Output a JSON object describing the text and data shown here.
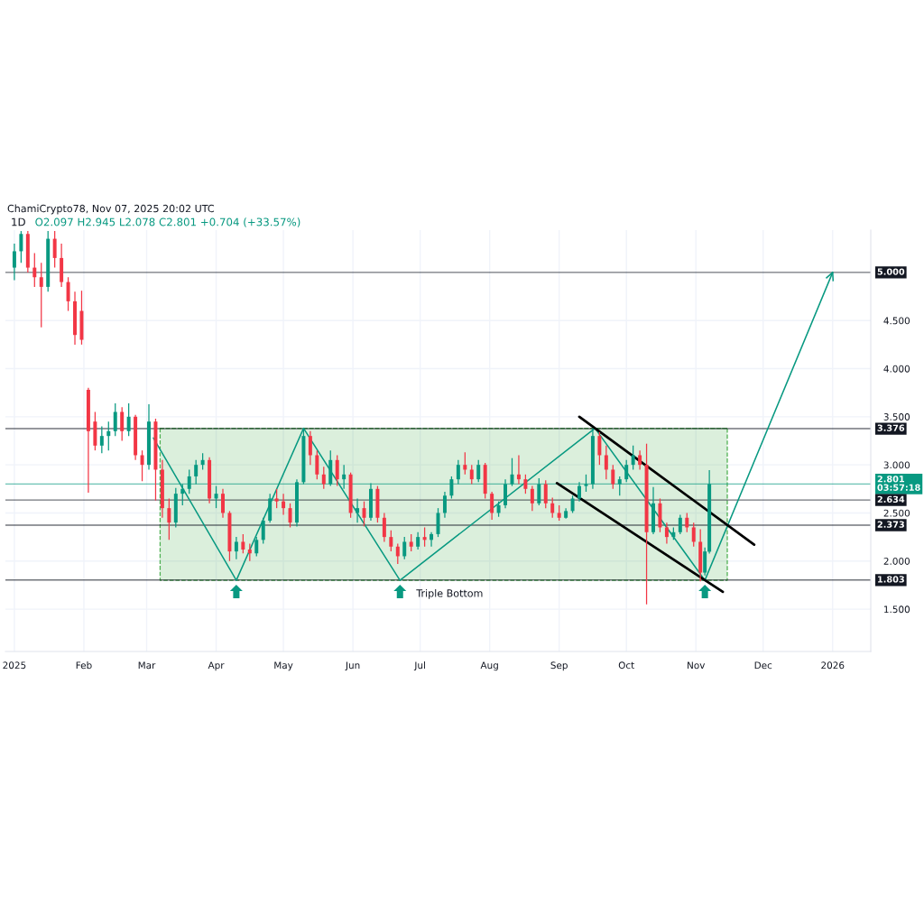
{
  "chart_data": {
    "type": "candlestick",
    "title": "1D",
    "subtitle": "O2.097 H2.945 L2.078 C2.801 +0.704 (+33.57%)",
    "annotations": [
      "ChamiCrypto78, Nov 07, 2025 20:02 UTC",
      {
        "text": "Triple Bottom",
        "x": "2025-06-22",
        "y": 1.8
      }
    ],
    "xlim": [
      "2024-12-28",
      "2026-01-18"
    ],
    "xticks": [
      {
        "value": "2025-01-01",
        "label": "2025"
      },
      {
        "value": "2025-02-01",
        "label": "Feb"
      },
      {
        "value": "2025-03-01",
        "label": "Mar"
      },
      {
        "value": "2025-04-01",
        "label": "Apr"
      },
      {
        "value": "2025-05-01",
        "label": "May"
      },
      {
        "value": "2025-06-01",
        "label": "Jun"
      },
      {
        "value": "2025-07-01",
        "label": "Jul"
      },
      {
        "value": "2025-08-01",
        "label": "Aug"
      },
      {
        "value": "2025-09-01",
        "label": "Sep"
      },
      {
        "value": "2025-10-01",
        "label": "Oct"
      },
      {
        "value": "2025-11-01",
        "label": "Nov"
      },
      {
        "value": "2025-12-01",
        "label": "Dec"
      },
      {
        "value": "2026-01-01",
        "label": "2026"
      }
    ],
    "ylim": [
      1.06,
      5.44
    ],
    "yticks": [
      {
        "value": 1.5,
        "label": "1.500"
      },
      {
        "value": 2.0,
        "label": "2.000"
      },
      {
        "value": 2.5,
        "label": "2.500"
      },
      {
        "value": 3.0,
        "label": "3.000"
      },
      {
        "value": 3.5,
        "label": "3.500"
      },
      {
        "value": 4.0,
        "label": "4.000"
      },
      {
        "value": 4.5,
        "label": "4.500"
      }
    ],
    "grid": true,
    "ref_lines": [
      {
        "axis": "y",
        "value": 5.0,
        "label": "5.000",
        "color": "#131722"
      },
      {
        "axis": "y",
        "value": 3.376,
        "label": "3.376",
        "color": "#131722"
      },
      {
        "axis": "y",
        "value": 2.801,
        "label": "2.801\n03:57:18",
        "color": "#089981"
      },
      {
        "axis": "y",
        "value": 2.634,
        "label": "2.634",
        "color": "#131722"
      },
      {
        "axis": "y",
        "value": 2.373,
        "label": "2.373",
        "color": "#131722"
      },
      {
        "axis": "y",
        "value": 1.803,
        "label": "1.803",
        "color": "#131722"
      }
    ],
    "series": [
      {
        "type": "line",
        "x": [
          "2025-03-07",
          "2025-11-15"
        ],
        "values": [
          3.38,
          3.38
        ],
        "lower": [
          1.8,
          1.8
        ],
        "upper": [
          3.38,
          3.38
        ],
        "color": "#4caf50",
        "line_style": "dashed"
      },
      {
        "x": [
          "2025-01-01",
          "2025-01-04",
          "2025-01-07",
          "2025-01-10",
          "2025-01-13",
          "2025-01-16",
          "2025-01-19",
          "2025-01-22",
          "2025-01-25",
          "2025-01-28",
          "2025-01-31",
          "2025-02-03",
          "2025-02-06",
          "2025-02-09",
          "2025-02-12",
          "2025-02-15",
          "2025-02-18",
          "2025-02-21",
          "2025-02-24",
          "2025-02-27",
          "2025-03-02",
          "2025-03-05",
          "2025-03-08",
          "2025-03-11",
          "2025-03-14",
          "2025-03-17",
          "2025-03-20",
          "2025-03-23",
          "2025-03-26",
          "2025-03-29",
          "2025-04-01",
          "2025-04-04",
          "2025-04-07",
          "2025-04-10",
          "2025-04-13",
          "2025-04-16",
          "2025-04-19",
          "2025-04-22",
          "2025-04-25",
          "2025-04-28",
          "2025-05-01",
          "2025-05-04",
          "2025-05-07",
          "2025-05-10",
          "2025-05-13",
          "2025-05-16",
          "2025-05-19",
          "2025-05-22",
          "2025-05-25",
          "2025-05-28",
          "2025-05-31",
          "2025-06-03",
          "2025-06-06",
          "2025-06-09",
          "2025-06-12",
          "2025-06-15",
          "2025-06-18",
          "2025-06-21",
          "2025-06-24",
          "2025-06-27",
          "2025-06-30",
          "2025-07-03",
          "2025-07-06",
          "2025-07-09",
          "2025-07-12",
          "2025-07-15",
          "2025-07-18",
          "2025-07-21",
          "2025-07-24",
          "2025-07-27",
          "2025-07-30",
          "2025-08-02",
          "2025-08-05",
          "2025-08-08",
          "2025-08-11",
          "2025-08-14",
          "2025-08-17",
          "2025-08-20",
          "2025-08-23",
          "2025-08-26",
          "2025-08-29",
          "2025-09-01",
          "2025-09-04",
          "2025-09-07",
          "2025-09-10",
          "2025-09-13",
          "2025-09-16",
          "2025-09-19",
          "2025-09-22",
          "2025-09-25",
          "2025-09-28",
          "2025-10-01",
          "2025-10-04",
          "2025-10-07",
          "2025-10-10",
          "2025-10-13",
          "2025-10-16",
          "2025-10-19",
          "2025-10-22",
          "2025-10-25",
          "2025-10-28",
          "2025-10-31",
          "2025-11-03",
          "2025-11-05",
          "2025-11-07"
        ],
        "ohlc": [
          [
            5.05,
            5.3,
            4.92,
            5.22
          ],
          [
            5.22,
            5.43,
            5.1,
            5.4
          ],
          [
            5.4,
            5.43,
            5.0,
            5.05
          ],
          [
            5.05,
            5.2,
            4.85,
            4.95
          ],
          [
            4.95,
            5.1,
            4.43,
            4.85
          ],
          [
            4.85,
            5.43,
            4.8,
            5.35
          ],
          [
            5.35,
            5.43,
            5.05,
            5.15
          ],
          [
            5.15,
            5.3,
            4.85,
            4.9
          ],
          [
            4.9,
            4.95,
            4.6,
            4.7
          ],
          [
            4.7,
            4.8,
            4.25,
            4.35
          ],
          [
            4.6,
            4.81,
            4.25,
            4.3
          ],
          [
            3.78,
            3.8,
            2.71,
            3.35
          ],
          [
            3.45,
            3.55,
            3.15,
            3.2
          ],
          [
            3.2,
            3.4,
            3.12,
            3.3
          ],
          [
            3.3,
            3.45,
            3.15,
            3.35
          ],
          [
            3.35,
            3.64,
            3.3,
            3.55
          ],
          [
            3.55,
            3.6,
            3.25,
            3.35
          ],
          [
            3.35,
            3.64,
            3.3,
            3.5
          ],
          [
            3.5,
            3.52,
            3.05,
            3.1
          ],
          [
            3.1,
            3.15,
            2.83,
            3.0
          ],
          [
            3.0,
            3.63,
            2.95,
            3.45
          ],
          [
            3.45,
            3.48,
            2.63,
            2.95
          ],
          [
            2.95,
            3.05,
            2.45,
            2.55
          ],
          [
            2.55,
            2.65,
            2.22,
            2.4
          ],
          [
            2.4,
            2.76,
            2.35,
            2.7
          ],
          [
            2.7,
            2.8,
            2.58,
            2.75
          ],
          [
            2.75,
            2.95,
            2.7,
            2.88
          ],
          [
            2.88,
            3.05,
            2.8,
            3.0
          ],
          [
            3.0,
            3.12,
            2.95,
            3.05
          ],
          [
            3.05,
            3.08,
            2.6,
            2.65
          ],
          [
            2.65,
            2.78,
            2.55,
            2.7
          ],
          [
            2.7,
            2.75,
            2.45,
            2.5
          ],
          [
            2.5,
            2.52,
            2.0,
            2.1
          ],
          [
            2.1,
            2.25,
            2.02,
            2.2
          ],
          [
            2.2,
            2.28,
            2.08,
            2.12
          ],
          [
            2.12,
            2.18,
            2.0,
            2.08
          ],
          [
            2.08,
            2.25,
            2.05,
            2.22
          ],
          [
            2.22,
            2.45,
            2.18,
            2.42
          ],
          [
            2.42,
            2.7,
            2.4,
            2.65
          ],
          [
            2.65,
            2.75,
            2.55,
            2.62
          ],
          [
            2.62,
            2.7,
            2.48,
            2.55
          ],
          [
            2.55,
            2.6,
            2.35,
            2.4
          ],
          [
            2.4,
            2.85,
            2.36,
            2.82
          ],
          [
            2.82,
            3.38,
            2.8,
            3.3
          ],
          [
            3.3,
            3.35,
            3.0,
            3.1
          ],
          [
            3.1,
            3.15,
            2.85,
            2.9
          ],
          [
            2.9,
            2.98,
            2.75,
            2.8
          ],
          [
            2.8,
            3.15,
            2.78,
            3.05
          ],
          [
            3.05,
            3.1,
            2.78,
            2.85
          ],
          [
            2.85,
            3.0,
            2.75,
            2.9
          ],
          [
            2.9,
            2.92,
            2.45,
            2.5
          ],
          [
            2.5,
            2.65,
            2.4,
            2.55
          ],
          [
            2.55,
            2.62,
            2.36,
            2.45
          ],
          [
            2.45,
            2.81,
            2.42,
            2.75
          ],
          [
            2.75,
            2.78,
            2.4,
            2.45
          ],
          [
            2.45,
            2.5,
            2.2,
            2.25
          ],
          [
            2.25,
            2.32,
            2.1,
            2.15
          ],
          [
            2.15,
            2.18,
            1.97,
            2.05
          ],
          [
            2.05,
            2.25,
            2.02,
            2.2
          ],
          [
            2.2,
            2.28,
            2.1,
            2.15
          ],
          [
            2.15,
            2.3,
            2.12,
            2.25
          ],
          [
            2.25,
            2.35,
            2.15,
            2.22
          ],
          [
            2.22,
            2.3,
            2.15,
            2.28
          ],
          [
            2.28,
            2.55,
            2.25,
            2.5
          ],
          [
            2.5,
            2.72,
            2.45,
            2.68
          ],
          [
            2.68,
            2.88,
            2.65,
            2.85
          ],
          [
            2.85,
            3.05,
            2.8,
            3.0
          ],
          [
            3.0,
            3.13,
            2.9,
            2.95
          ],
          [
            2.95,
            3.0,
            2.8,
            2.85
          ],
          [
            2.85,
            3.05,
            2.82,
            3.0
          ],
          [
            3.0,
            3.02,
            2.65,
            2.7
          ],
          [
            2.7,
            2.72,
            2.43,
            2.5
          ],
          [
            2.5,
            2.62,
            2.46,
            2.58
          ],
          [
            2.58,
            2.85,
            2.55,
            2.8
          ],
          [
            2.8,
            3.07,
            2.78,
            2.9
          ],
          [
            2.9,
            3.1,
            2.8,
            2.85
          ],
          [
            2.85,
            2.9,
            2.7,
            2.75
          ],
          [
            2.75,
            2.78,
            2.52,
            2.6
          ],
          [
            2.6,
            2.86,
            2.58,
            2.8
          ],
          [
            2.8,
            2.84,
            2.55,
            2.6
          ],
          [
            2.6,
            2.66,
            2.45,
            2.5
          ],
          [
            2.5,
            2.58,
            2.42,
            2.45
          ],
          [
            2.45,
            2.55,
            2.44,
            2.52
          ],
          [
            2.52,
            2.68,
            2.5,
            2.65
          ],
          [
            2.65,
            2.82,
            2.62,
            2.78
          ],
          [
            2.78,
            2.9,
            2.72,
            2.8
          ],
          [
            2.8,
            3.38,
            2.75,
            3.3
          ],
          [
            3.3,
            3.34,
            3.0,
            3.1
          ],
          [
            3.1,
            3.2,
            2.85,
            2.95
          ],
          [
            2.95,
            3.0,
            2.75,
            2.8
          ],
          [
            2.8,
            2.88,
            2.68,
            2.85
          ],
          [
            2.85,
            3.05,
            2.82,
            3.0
          ],
          [
            3.0,
            3.2,
            2.95,
            3.1
          ],
          [
            3.1,
            3.15,
            2.95,
            3.0
          ],
          [
            3.0,
            3.22,
            1.55,
            2.3
          ],
          [
            2.3,
            2.77,
            2.28,
            2.6
          ],
          [
            2.6,
            2.65,
            2.3,
            2.35
          ],
          [
            2.35,
            2.4,
            2.18,
            2.25
          ],
          [
            2.25,
            2.35,
            2.22,
            2.3
          ],
          [
            2.3,
            2.48,
            2.28,
            2.45
          ],
          [
            2.45,
            2.5,
            2.3,
            2.35
          ],
          [
            2.35,
            2.4,
            2.15,
            2.2
          ],
          [
            2.2,
            2.33,
            1.79,
            1.88
          ],
          [
            1.88,
            2.14,
            1.85,
            2.1
          ],
          [
            2.097,
            2.945,
            2.078,
            2.801
          ]
        ],
        "colors": [
          "#089981",
          "#089981",
          "#f23645",
          "#f23645",
          "#f23645",
          "#089981",
          "#f23645",
          "#f23645",
          "#f23645",
          "#f23645",
          "#f23645",
          "#f23645",
          "#f23645",
          "#089981",
          "#089981",
          "#089981",
          "#f23645",
          "#089981",
          "#f23645",
          "#f23645",
          "#089981",
          "#f23645",
          "#f23645",
          "#f23645",
          "#089981",
          "#089981",
          "#089981",
          "#089981",
          "#089981",
          "#f23645",
          "#089981",
          "#f23645",
          "#f23645",
          "#089981",
          "#f23645",
          "#f23645",
          "#089981",
          "#089981",
          "#089981",
          "#f23645",
          "#f23645",
          "#f23645",
          "#089981",
          "#089981",
          "#f23645",
          "#f23645",
          "#f23645",
          "#089981",
          "#f23645",
          "#089981",
          "#f23645",
          "#089981",
          "#f23645",
          "#089981",
          "#f23645",
          "#f23645",
          "#f23645",
          "#f23645",
          "#089981",
          "#f23645",
          "#089981",
          "#f23645",
          "#089981",
          "#089981",
          "#089981",
          "#089981",
          "#089981",
          "#f23645",
          "#f23645",
          "#089981",
          "#f23645",
          "#f23645",
          "#089981",
          "#089981",
          "#089981",
          "#f23645",
          "#f23645",
          "#f23645",
          "#089981",
          "#f23645",
          "#f23645",
          "#f23645",
          "#089981",
          "#089981",
          "#089981",
          "#089981",
          "#089981",
          "#f23645",
          "#f23645",
          "#f23645",
          "#089981",
          "#089981",
          "#089981",
          "#f23645",
          "#f23645",
          "#089981",
          "#f23645",
          "#f23645",
          "#089981",
          "#089981",
          "#f23645",
          "#f23645",
          "#f23645",
          "#089981",
          "#089981"
        ]
      },
      {
        "type": "line",
        "x": [
          "2025-03-04",
          "2025-04-10",
          "2025-05-10",
          "2025-06-22",
          "2025-09-17",
          "2025-11-05",
          "2026-01-01"
        ],
        "values": [
          3.28,
          1.8,
          3.38,
          1.8,
          3.38,
          1.8,
          5.0
        ],
        "color": "#089981"
      },
      {
        "type": "line",
        "x": [
          "2025-09-10",
          "2025-11-27"
        ],
        "values": [
          3.5,
          2.17
        ],
        "color": "#000000"
      },
      {
        "type": "line",
        "x": [
          "2025-08-31",
          "2025-11-13"
        ],
        "values": [
          2.81,
          1.68
        ],
        "color": "#000000"
      }
    ]
  }
}
